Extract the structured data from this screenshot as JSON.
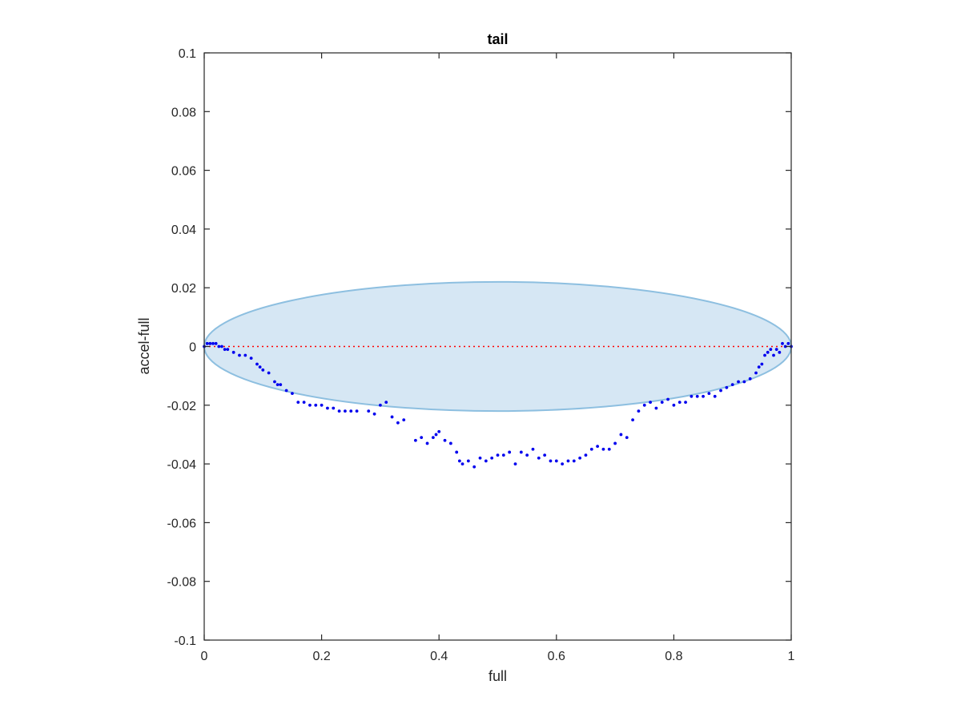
{
  "chart_data": {
    "type": "scatter",
    "title": "tail",
    "xlabel": "full",
    "ylabel": "accel-full",
    "xlim": [
      0,
      1
    ],
    "ylim": [
      -0.1,
      0.1
    ],
    "xticks": [
      0,
      0.2,
      0.4,
      0.6,
      0.8,
      1
    ],
    "xtick_labels": [
      "0",
      "0.2",
      "0.4",
      "0.6",
      "0.8",
      "1"
    ],
    "yticks": [
      0.1,
      0.08,
      0.06,
      0.04,
      0.02,
      0,
      -0.02,
      -0.04,
      -0.06,
      -0.08,
      -0.1
    ],
    "ytick_labels": [
      "0.1",
      "0.08",
      "0.06",
      "0.04",
      "0.02",
      "0",
      "-0.02",
      "-0.04",
      "-0.06",
      "-0.08",
      "-0.1"
    ],
    "grid": false,
    "colors": {
      "points": "#0000ee",
      "ellipse_fill": "#d6e7f4",
      "ellipse_edge": "#8dbfe0",
      "zero_line": "#ff0000"
    },
    "ellipse": {
      "center": [
        0.5,
        0
      ],
      "semi_axis_x": 0.5,
      "semi_axis_y": 0.022
    },
    "zero_line": {
      "y": 0,
      "style": "dotted"
    },
    "series": [
      {
        "points": [
          [
            0.0,
            0.0
          ],
          [
            0.005,
            0.001
          ],
          [
            0.01,
            0.001
          ],
          [
            0.015,
            0.001
          ],
          [
            0.02,
            0.001
          ],
          [
            0.025,
            0.0
          ],
          [
            0.03,
            0.0
          ],
          [
            0.035,
            -0.001
          ],
          [
            0.04,
            -0.001
          ],
          [
            0.05,
            -0.002
          ],
          [
            0.06,
            -0.003
          ],
          [
            0.07,
            -0.003
          ],
          [
            0.08,
            -0.004
          ],
          [
            0.09,
            -0.006
          ],
          [
            0.095,
            -0.007
          ],
          [
            0.1,
            -0.008
          ],
          [
            0.11,
            -0.009
          ],
          [
            0.12,
            -0.012
          ],
          [
            0.125,
            -0.013
          ],
          [
            0.13,
            -0.013
          ],
          [
            0.14,
            -0.015
          ],
          [
            0.15,
            -0.016
          ],
          [
            0.16,
            -0.019
          ],
          [
            0.17,
            -0.019
          ],
          [
            0.18,
            -0.02
          ],
          [
            0.19,
            -0.02
          ],
          [
            0.2,
            -0.02
          ],
          [
            0.21,
            -0.021
          ],
          [
            0.22,
            -0.021
          ],
          [
            0.23,
            -0.022
          ],
          [
            0.24,
            -0.022
          ],
          [
            0.25,
            -0.022
          ],
          [
            0.26,
            -0.022
          ],
          [
            0.28,
            -0.022
          ],
          [
            0.29,
            -0.023
          ],
          [
            0.3,
            -0.02
          ],
          [
            0.31,
            -0.019
          ],
          [
            0.32,
            -0.024
          ],
          [
            0.33,
            -0.026
          ],
          [
            0.34,
            -0.025
          ],
          [
            0.36,
            -0.032
          ],
          [
            0.37,
            -0.031
          ],
          [
            0.38,
            -0.033
          ],
          [
            0.39,
            -0.031
          ],
          [
            0.395,
            -0.03
          ],
          [
            0.4,
            -0.029
          ],
          [
            0.41,
            -0.032
          ],
          [
            0.42,
            -0.033
          ],
          [
            0.43,
            -0.036
          ],
          [
            0.435,
            -0.039
          ],
          [
            0.44,
            -0.04
          ],
          [
            0.45,
            -0.039
          ],
          [
            0.46,
            -0.041
          ],
          [
            0.47,
            -0.038
          ],
          [
            0.48,
            -0.039
          ],
          [
            0.49,
            -0.038
          ],
          [
            0.5,
            -0.037
          ],
          [
            0.51,
            -0.037
          ],
          [
            0.52,
            -0.036
          ],
          [
            0.53,
            -0.04
          ],
          [
            0.54,
            -0.036
          ],
          [
            0.55,
            -0.037
          ],
          [
            0.56,
            -0.035
          ],
          [
            0.57,
            -0.038
          ],
          [
            0.58,
            -0.037
          ],
          [
            0.59,
            -0.039
          ],
          [
            0.6,
            -0.039
          ],
          [
            0.61,
            -0.04
          ],
          [
            0.62,
            -0.039
          ],
          [
            0.63,
            -0.039
          ],
          [
            0.64,
            -0.038
          ],
          [
            0.65,
            -0.037
          ],
          [
            0.66,
            -0.035
          ],
          [
            0.67,
            -0.034
          ],
          [
            0.68,
            -0.035
          ],
          [
            0.69,
            -0.035
          ],
          [
            0.7,
            -0.033
          ],
          [
            0.71,
            -0.03
          ],
          [
            0.72,
            -0.031
          ],
          [
            0.73,
            -0.025
          ],
          [
            0.74,
            -0.022
          ],
          [
            0.75,
            -0.02
          ],
          [
            0.76,
            -0.019
          ],
          [
            0.77,
            -0.021
          ],
          [
            0.78,
            -0.019
          ],
          [
            0.79,
            -0.018
          ],
          [
            0.8,
            -0.02
          ],
          [
            0.81,
            -0.019
          ],
          [
            0.82,
            -0.019
          ],
          [
            0.83,
            -0.017
          ],
          [
            0.84,
            -0.017
          ],
          [
            0.85,
            -0.017
          ],
          [
            0.86,
            -0.016
          ],
          [
            0.87,
            -0.017
          ],
          [
            0.88,
            -0.015
          ],
          [
            0.89,
            -0.014
          ],
          [
            0.9,
            -0.013
          ],
          [
            0.91,
            -0.012
          ],
          [
            0.92,
            -0.012
          ],
          [
            0.93,
            -0.011
          ],
          [
            0.94,
            -0.009
          ],
          [
            0.945,
            -0.007
          ],
          [
            0.95,
            -0.006
          ],
          [
            0.955,
            -0.003
          ],
          [
            0.96,
            -0.002
          ],
          [
            0.965,
            -0.001
          ],
          [
            0.97,
            -0.003
          ],
          [
            0.975,
            -0.001
          ],
          [
            0.98,
            -0.002
          ],
          [
            0.985,
            0.001
          ],
          [
            0.99,
            0.0
          ],
          [
            0.995,
            0.001
          ],
          [
            1.0,
            0.0
          ]
        ]
      }
    ]
  }
}
